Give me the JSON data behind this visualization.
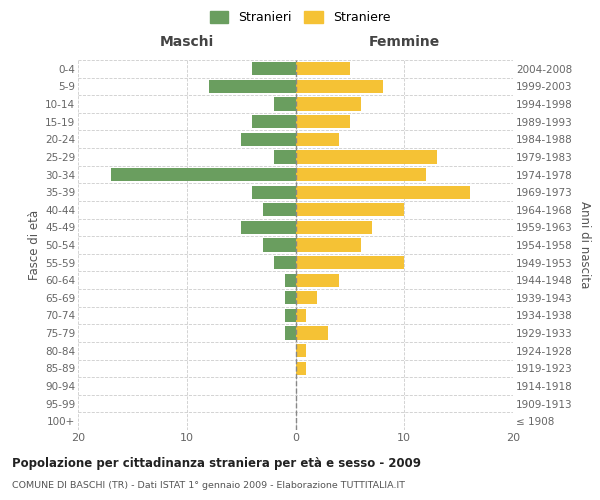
{
  "age_groups": [
    "100+",
    "95-99",
    "90-94",
    "85-89",
    "80-84",
    "75-79",
    "70-74",
    "65-69",
    "60-64",
    "55-59",
    "50-54",
    "45-49",
    "40-44",
    "35-39",
    "30-34",
    "25-29",
    "20-24",
    "15-19",
    "10-14",
    "5-9",
    "0-4"
  ],
  "birth_years": [
    "≤ 1908",
    "1909-1913",
    "1914-1918",
    "1919-1923",
    "1924-1928",
    "1929-1933",
    "1934-1938",
    "1939-1943",
    "1944-1948",
    "1949-1953",
    "1954-1958",
    "1959-1963",
    "1964-1968",
    "1969-1973",
    "1974-1978",
    "1979-1983",
    "1984-1988",
    "1989-1993",
    "1994-1998",
    "1999-2003",
    "2004-2008"
  ],
  "maschi": [
    0,
    0,
    0,
    0,
    0,
    1,
    1,
    1,
    1,
    2,
    3,
    5,
    3,
    4,
    17,
    2,
    5,
    4,
    2,
    8,
    4
  ],
  "femmine": [
    0,
    0,
    0,
    1,
    1,
    3,
    1,
    2,
    4,
    10,
    6,
    7,
    10,
    16,
    12,
    13,
    4,
    5,
    6,
    8,
    5
  ],
  "color_maschi": "#6a9e5f",
  "color_femmine": "#f5c235",
  "title": "Popolazione per cittadinanza straniera per età e sesso - 2009",
  "subtitle": "COMUNE DI BASCHI (TR) - Dati ISTAT 1° gennaio 2009 - Elaborazione TUTTITALIA.IT",
  "header_left": "Maschi",
  "header_right": "Femmine",
  "ylabel_left": "Fasce di età",
  "ylabel_right": "Anni di nascita",
  "legend_stranieri": "Stranieri",
  "legend_straniere": "Straniere",
  "xlim": 20,
  "background_color": "#ffffff",
  "grid_color": "#cccccc"
}
